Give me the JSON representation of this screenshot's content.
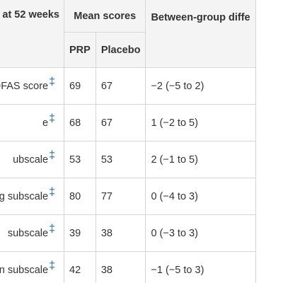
{
  "header": {
    "outcome_label": "at 52 weeks",
    "mean_scores_label": "Mean scores",
    "between_group_label": "Between-group diffe",
    "prp_label": "PRP",
    "placebo_label": "Placebo"
  },
  "rows": [
    {
      "outcome": "OFAS score",
      "marker": "‡",
      "prp": "69",
      "placebo": "67",
      "difference": "−2 (−5 to 2)"
    },
    {
      "outcome": "e",
      "marker": "‡",
      "prp": "68",
      "placebo": "67",
      "difference": "1 (−2 to 5)"
    },
    {
      "outcome": "ubscale",
      "marker": "‡",
      "prp": "53",
      "placebo": "53",
      "difference": "2 (−1 to 5)"
    },
    {
      "outcome": "aily living subscale",
      "marker": "‡",
      "prp": "80",
      "placebo": "77",
      "difference": "0 (−4 to 3)"
    },
    {
      "outcome": "subscale",
      "marker": "‡",
      "prp": "39",
      "placebo": "38",
      "difference": "0 (−3 to 3)"
    },
    {
      "outcome": "creation subscale",
      "marker": "‡",
      "prp": "42",
      "placebo": "38",
      "difference": "−1 (−5 to 3)"
    }
  ]
}
